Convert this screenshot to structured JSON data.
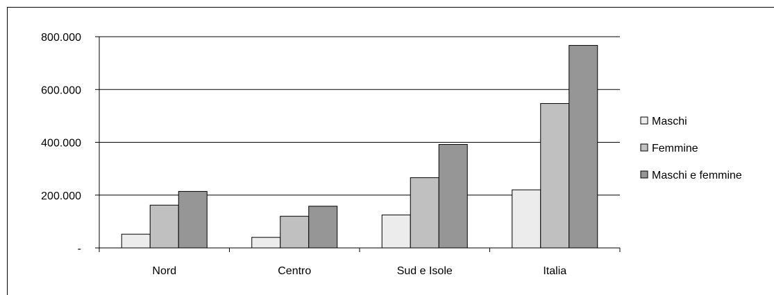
{
  "chart_data": {
    "type": "bar",
    "categories": [
      "Nord",
      "Centro",
      "Sud e Isole",
      "Italia"
    ],
    "series": [
      {
        "name": "Maschi",
        "values": [
          52000,
          40000,
          125000,
          220000
        ],
        "color": "#ececec"
      },
      {
        "name": "Femmine",
        "values": [
          162000,
          120000,
          266000,
          547000
        ],
        "color": "#c0c0c0"
      },
      {
        "name": "Maschi e femmine",
        "values": [
          214000,
          158000,
          392000,
          767000
        ],
        "color": "#969696"
      }
    ],
    "yticks": [
      {
        "value": 0,
        "label": "-"
      },
      {
        "value": 200000,
        "label": "200.000"
      },
      {
        "value": 400000,
        "label": "400.000"
      },
      {
        "value": 600000,
        "label": "600.000"
      },
      {
        "value": 800000,
        "label": "800.000"
      }
    ],
    "ylim": [
      0,
      800000
    ],
    "grid": true,
    "legend_position": "right"
  }
}
